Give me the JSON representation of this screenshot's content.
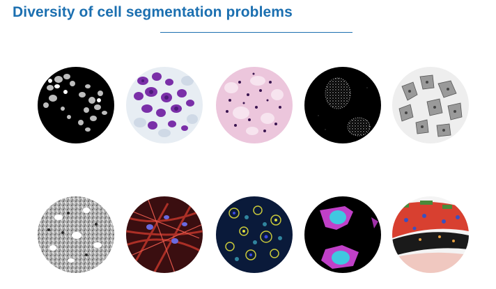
{
  "slide": {
    "title": "Diversity of cell segmentation problems",
    "accent_color": "#1b6fb0"
  },
  "images": [
    {
      "name": "fluorescent-nuclei-image"
    },
    {
      "name": "stained-blood-cells-image"
    },
    {
      "name": "pink-stained-tissue-image"
    },
    {
      "name": "dotted-nuclei-image"
    },
    {
      "name": "gray-cells-image"
    },
    {
      "name": "grayscale-texture-tissue-image"
    },
    {
      "name": "red-fibrous-cells-image"
    },
    {
      "name": "multicolor-fluorescence-image"
    },
    {
      "name": "magenta-cyan-cells-image"
    },
    {
      "name": "colorful-tissue-section-image"
    }
  ]
}
